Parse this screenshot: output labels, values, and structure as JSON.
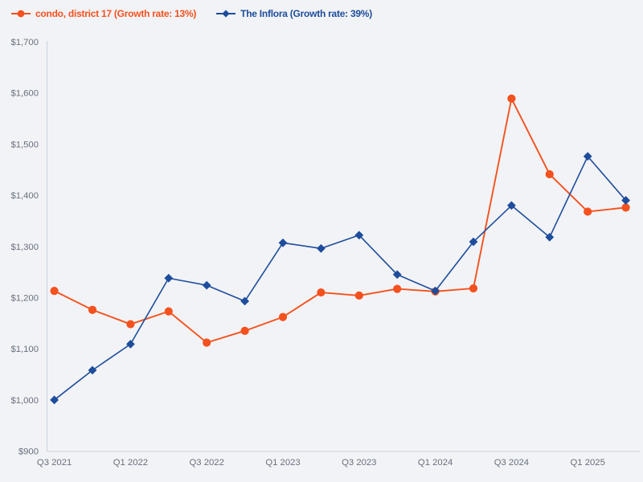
{
  "legend": {
    "series1_label": "condo, district 17 (Growth rate: 13%)",
    "series2_label": "The Inflora (Growth rate: 39%)"
  },
  "colors": {
    "background": "#f2f3f6",
    "condo": "#f4511e",
    "inflora": "#1d4d9c",
    "axis_line": "#c9d1de",
    "tick_label": "#67707e"
  },
  "chart_data": {
    "type": "line",
    "x": [
      "Q3 2021",
      "Q4 2021",
      "Q1 2022",
      "Q2 2022",
      "Q3 2022",
      "Q4 2022",
      "Q1 2023",
      "Q2 2023",
      "Q3 2023",
      "Q4 2023",
      "Q1 2024",
      "Q2 2024",
      "Q3 2024",
      "Q4 2024",
      "Q1 2025",
      "Q2 2025"
    ],
    "x_tick_every": 2,
    "x_tick_labels": [
      "Q3 2021",
      "Q1 2022",
      "Q3 2022",
      "Q1 2023",
      "Q3 2023",
      "Q1 2024",
      "Q3 2024",
      "Q1 2025"
    ],
    "series": [
      {
        "name": "condo, district 17",
        "growth_rate": "13%",
        "legend_label": "condo, district 17 (Growth rate: 13%)",
        "color": "#f4511e",
        "marker": "circle",
        "values": [
          1213,
          1176,
          1148,
          1173,
          1112,
          1135,
          1162,
          1210,
          1204,
          1217,
          1212,
          1218,
          1589,
          1441,
          1368,
          1376
        ]
      },
      {
        "name": "The Inflora",
        "growth_rate": "39%",
        "legend_label": "The Inflora (Growth rate: 39%)",
        "color": "#1d4d9c",
        "marker": "diamond",
        "values": [
          1000,
          1058,
          1109,
          1238,
          1224,
          1193,
          1307,
          1296,
          1322,
          1245,
          1213,
          1309,
          1380,
          1318,
          1476,
          1390
        ]
      }
    ],
    "title": "",
    "xlabel": "",
    "ylabel": "",
    "ylim": [
      900,
      1700
    ],
    "y_tick_step": 100,
    "y_ticks": [
      "$900",
      "$1,000",
      "$1,100",
      "$1,200",
      "$1,300",
      "$1,400",
      "$1,500",
      "$1,600",
      "$1,700"
    ],
    "currency_prefix": "$",
    "grid": false,
    "legend_position": "top-left"
  }
}
